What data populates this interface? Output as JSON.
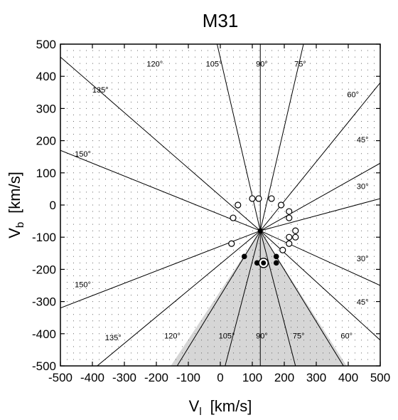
{
  "chart_data": {
    "type": "scatter",
    "title": "M31",
    "xlabel": {
      "main": "V",
      "sub": "l",
      "unit": "[km/s]"
    },
    "ylabel": {
      "main": "V",
      "sub": "b",
      "unit": "[km/s]"
    },
    "xlim": [
      -500,
      500
    ],
    "ylim": [
      -500,
      500
    ],
    "xticks": [
      -500,
      -400,
      -300,
      -200,
      -100,
      0,
      100,
      200,
      300,
      400,
      500
    ],
    "yticks": [
      -500,
      -400,
      -300,
      -200,
      -100,
      0,
      100,
      200,
      300,
      400,
      500
    ],
    "grid": "dotted",
    "apex": {
      "x": 125,
      "y": -80
    },
    "rays_upper": [
      {
        "label": "120°",
        "end": [
          -500,
          460
        ]
      },
      {
        "label": "135°",
        "end": [
          -500,
          170
        ]
      },
      {
        "label": "150°",
        "end": [
          -500,
          -320
        ]
      },
      {
        "label": "105°",
        "end": [
          -10,
          500
        ]
      },
      {
        "label": "90°",
        "end": [
          125,
          500
        ]
      },
      {
        "label": "75°",
        "end": [
          260,
          500
        ]
      },
      {
        "label": "60°",
        "end": [
          500,
          380
        ]
      },
      {
        "label": "45°",
        "end": [
          500,
          130
        ]
      },
      {
        "label": "30°",
        "end": [
          500,
          20
        ]
      }
    ],
    "rays_lower": [
      {
        "label": "135°",
        "end": [
          -385,
          -500
        ]
      },
      {
        "label": "120°",
        "end": [
          -135,
          -500
        ]
      },
      {
        "label": "105°",
        "end": [
          15,
          -500
        ]
      },
      {
        "label": "90°",
        "end": [
          125,
          -500
        ]
      },
      {
        "label": "75°",
        "end": [
          235,
          -500
        ]
      },
      {
        "label": "60°",
        "end": [
          385,
          -500
        ]
      },
      {
        "label": "45°",
        "end": [
          500,
          -420
        ]
      },
      {
        "label": "30°",
        "end": [
          500,
          -250
        ]
      }
    ],
    "shaded_region": {
      "vertices": [
        [
          125,
          -80
        ],
        [
          -155,
          -500
        ],
        [
          395,
          -500
        ]
      ]
    },
    "angle_labels": [
      {
        "text": "120°",
        "x": -205,
        "y": 430
      },
      {
        "text": "105°",
        "x": -20,
        "y": 430
      },
      {
        "text": "90°",
        "x": 130,
        "y": 430
      },
      {
        "text": "75°",
        "x": 250,
        "y": 430
      },
      {
        "text": "135°",
        "x": -375,
        "y": 350
      },
      {
        "text": "60°",
        "x": 415,
        "y": 335
      },
      {
        "text": "45°",
        "x": 445,
        "y": 195
      },
      {
        "text": "150°",
        "x": -430,
        "y": 150
      },
      {
        "text": "30°",
        "x": 445,
        "y": 50
      },
      {
        "text": "30°",
        "x": 445,
        "y": -175
      },
      {
        "text": "150°",
        "x": -430,
        "y": -255
      },
      {
        "text": "45°",
        "x": 445,
        "y": -310
      },
      {
        "text": "135°",
        "x": -335,
        "y": -420
      },
      {
        "text": "120°",
        "x": -150,
        "y": -415
      },
      {
        "text": "105°",
        "x": 20,
        "y": -415
      },
      {
        "text": "90°",
        "x": 130,
        "y": -415
      },
      {
        "text": "75°",
        "x": 245,
        "y": -415
      },
      {
        "text": "60°",
        "x": 395,
        "y": -415
      }
    ],
    "series": [
      {
        "marker": "open_circle",
        "x": [
          100,
          120,
          160,
          55,
          190,
          215,
          215,
          235,
          235,
          215,
          215,
          40,
          35,
          195
        ],
        "y": [
          20,
          20,
          20,
          0,
          0,
          -20,
          -40,
          -80,
          -100,
          -100,
          -120,
          -40,
          -120,
          -140
        ]
      },
      {
        "marker": "filled_circle",
        "x": [
          75,
          115,
          135,
          175,
          175
        ],
        "y": [
          -160,
          -180,
          -180,
          -160,
          -180
        ]
      },
      {
        "marker": "filled_circle_ringed",
        "x": [
          135
        ],
        "y": [
          -180
        ]
      }
    ]
  }
}
